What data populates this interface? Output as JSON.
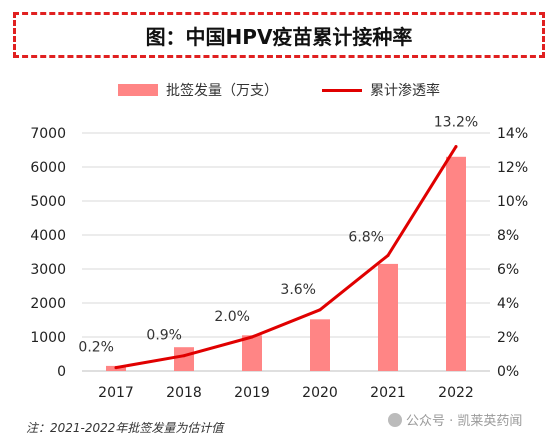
{
  "header": {
    "title": "图：中国HPV疫苗累计接种率"
  },
  "legend": {
    "bar_label": "批签发量（万支）",
    "line_label": "累计渗透率"
  },
  "footnote": "注：2021-2022年批签发量为估计值",
  "watermark": "公众号 · 凯莱英药闻",
  "chart_data": {
    "type": "bar",
    "categories": [
      "2017",
      "2018",
      "2019",
      "2020",
      "2021",
      "2022"
    ],
    "series": [
      {
        "name": "批签发量（万支）",
        "type": "bar",
        "axis": "left",
        "values": [
          150,
          700,
          1050,
          1520,
          3150,
          6300
        ]
      },
      {
        "name": "累计渗透率",
        "type": "line",
        "axis": "right",
        "values": [
          0.2,
          0.9,
          2.0,
          3.6,
          6.8,
          13.2
        ],
        "labels": [
          "0.2%",
          "0.9%",
          "2.0%",
          "3.6%",
          "6.8%",
          "13.2%"
        ]
      }
    ],
    "ylim_left": [
      0,
      7000
    ],
    "yticks_left": [
      "0",
      "1000",
      "2000",
      "3000",
      "4000",
      "5000",
      "6000",
      "7000"
    ],
    "ylim_right": [
      0,
      14
    ],
    "yticks_right": [
      "0%",
      "2%",
      "4%",
      "6%",
      "8%",
      "10%",
      "12%",
      "14%"
    ],
    "grid": true,
    "legend_position": "top",
    "colors": {
      "bar": "#ff8585",
      "line": "#e00000"
    }
  }
}
